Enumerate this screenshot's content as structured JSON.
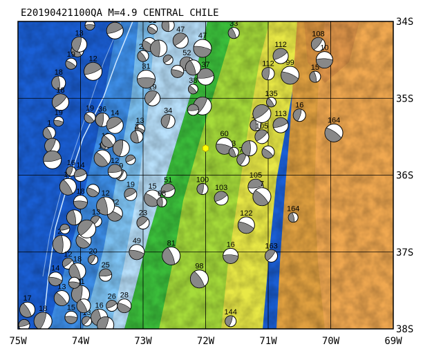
{
  "header": {
    "title": "E20190421100QA M=4.9 CENTRAL CHILE"
  },
  "map": {
    "lon_range": [
      -75,
      -69
    ],
    "lat_range": [
      -38,
      -34
    ],
    "x_ticks": [
      {
        "lon": -75,
        "label": "75W"
      },
      {
        "lon": -74,
        "label": "74W"
      },
      {
        "lon": -73,
        "label": "73W"
      },
      {
        "lon": -72,
        "label": "72W"
      },
      {
        "lon": -71,
        "label": "71W"
      },
      {
        "lon": -70,
        "label": "70W"
      },
      {
        "lon": -69,
        "label": "69W"
      }
    ],
    "y_ticks": [
      {
        "lat": -34,
        "label": "34S"
      },
      {
        "lat": -35,
        "label": "35S"
      },
      {
        "lat": -36,
        "label": "36S"
      },
      {
        "lat": -37,
        "label": "37S"
      },
      {
        "lat": -38,
        "label": "38S"
      }
    ],
    "epicenter": {
      "lon": -72.0,
      "lat": -35.65
    },
    "colors": {
      "deep_ocean": "#1a5fd6",
      "mid_ocean": "#3d8ee8",
      "shelf": "#7ec4f5",
      "shelf_light": "#b8e0fb",
      "lowland": "#3bbf3b",
      "hill": "#a6dc3a",
      "plateau": "#e8e846",
      "highland": "#e0a040",
      "mountain": "#f0a850",
      "peak": "#c87840",
      "epicenter": "#ffff00",
      "beach_fill": "#888888"
    }
  },
  "events": [
    {
      "lon": -73.85,
      "lat": -34.05,
      "depth": "21"
    },
    {
      "lon": -74.05,
      "lat": -34.38,
      "depth": "12"
    },
    {
      "lon": -74.02,
      "lat": -34.3,
      "depth": "13"
    },
    {
      "lon": -73.8,
      "lat": -34.65,
      "depth": "12"
    },
    {
      "lon": -74.15,
      "lat": -34.55,
      "depth": "19"
    },
    {
      "lon": -74.35,
      "lat": -34.8,
      "depth": "18"
    },
    {
      "lon": -74.32,
      "lat": -35.05,
      "depth": "18"
    },
    {
      "lon": -74.35,
      "lat": -35.3,
      "depth": "19"
    },
    {
      "lon": -74.5,
      "lat": -35.45,
      "depth": "1"
    },
    {
      "lon": -74.45,
      "lat": -35.62,
      "depth": ""
    },
    {
      "lon": -74.45,
      "lat": -35.8,
      "depth": ""
    },
    {
      "lon": -73.85,
      "lat": -35.25,
      "depth": "19"
    },
    {
      "lon": -73.65,
      "lat": -35.28,
      "depth": "36"
    },
    {
      "lon": -73.45,
      "lat": -35.35,
      "depth": "14"
    },
    {
      "lon": -73.05,
      "lat": -35.4,
      "depth": "13"
    },
    {
      "lon": -73.1,
      "lat": -35.5,
      "depth": "3"
    },
    {
      "lon": -72.85,
      "lat": -35.0,
      "depth": "19"
    },
    {
      "lon": -72.95,
      "lat": -34.75,
      "depth": "31"
    },
    {
      "lon": -73.0,
      "lat": -34.45,
      "depth": "21"
    },
    {
      "lon": -72.6,
      "lat": -35.3,
      "depth": "34"
    },
    {
      "lon": -73.45,
      "lat": -34.12,
      "depth": "32"
    },
    {
      "lon": -72.85,
      "lat": -34.1,
      "depth": "31"
    },
    {
      "lon": -72.6,
      "lat": -34.05,
      "depth": "38"
    },
    {
      "lon": -72.4,
      "lat": -34.25,
      "depth": "47"
    },
    {
      "lon": -72.05,
      "lat": -34.35,
      "depth": "47"
    },
    {
      "lon": -71.55,
      "lat": -34.15,
      "depth": "33"
    },
    {
      "lon": -72.3,
      "lat": -34.55,
      "depth": "52"
    },
    {
      "lon": -72.0,
      "lat": -34.72,
      "depth": "37"
    },
    {
      "lon": -72.2,
      "lat": -34.88,
      "depth": "38"
    },
    {
      "lon": -71.0,
      "lat": -34.68,
      "depth": "112"
    },
    {
      "lon": -70.8,
      "lat": -34.45,
      "depth": "112"
    },
    {
      "lon": -70.65,
      "lat": -34.7,
      "depth": "99"
    },
    {
      "lon": -70.25,
      "lat": -34.72,
      "depth": "15"
    },
    {
      "lon": -70.2,
      "lat": -34.3,
      "depth": "108"
    },
    {
      "lon": -70.1,
      "lat": -34.5,
      "depth": "10"
    },
    {
      "lon": -70.95,
      "lat": -35.05,
      "depth": "135"
    },
    {
      "lon": -70.5,
      "lat": -35.22,
      "depth": "16"
    },
    {
      "lon": -70.8,
      "lat": -35.35,
      "depth": "113"
    },
    {
      "lon": -69.95,
      "lat": -35.45,
      "depth": "164"
    },
    {
      "lon": -71.2,
      "lat": -35.35,
      "depth": "10"
    },
    {
      "lon": -71.1,
      "lat": -35.5,
      "depth": "105"
    },
    {
      "lon": -71.7,
      "lat": -35.62,
      "depth": "60"
    },
    {
      "lon": -71.55,
      "lat": -35.7,
      "depth": "3"
    },
    {
      "lon": -71.4,
      "lat": -35.8,
      "depth": "77"
    },
    {
      "lon": -71.2,
      "lat": -36.15,
      "depth": "105"
    },
    {
      "lon": -71.1,
      "lat": -36.28,
      "depth": "7"
    },
    {
      "lon": -72.05,
      "lat": -36.18,
      "depth": "100"
    },
    {
      "lon": -71.75,
      "lat": -36.3,
      "depth": "103"
    },
    {
      "lon": -71.35,
      "lat": -36.65,
      "depth": "122"
    },
    {
      "lon": -70.6,
      "lat": -36.55,
      "depth": "164"
    },
    {
      "lon": -70.95,
      "lat": -37.05,
      "depth": "163"
    },
    {
      "lon": -71.6,
      "lat": -37.05,
      "depth": "16"
    },
    {
      "lon": -72.1,
      "lat": -37.35,
      "depth": "98"
    },
    {
      "lon": -71.6,
      "lat": -37.9,
      "depth": "144"
    },
    {
      "lon": -72.6,
      "lat": -36.2,
      "depth": "51"
    },
    {
      "lon": -72.85,
      "lat": -36.3,
      "depth": "15"
    },
    {
      "lon": -72.7,
      "lat": -36.35,
      "depth": "68"
    },
    {
      "lon": -73.0,
      "lat": -36.62,
      "depth": "23"
    },
    {
      "lon": -73.1,
      "lat": -37.0,
      "depth": "49"
    },
    {
      "lon": -72.55,
      "lat": -37.05,
      "depth": "81"
    },
    {
      "lon": -73.35,
      "lat": -36.0,
      "depth": "9"
    },
    {
      "lon": -73.45,
      "lat": -35.95,
      "depth": "12"
    },
    {
      "lon": -73.65,
      "lat": -35.78,
      "depth": "16"
    },
    {
      "lon": -73.6,
      "lat": -35.6,
      "depth": "18"
    },
    {
      "lon": -73.2,
      "lat": -36.25,
      "depth": "19"
    },
    {
      "lon": -73.45,
      "lat": -36.5,
      "depth": "22"
    },
    {
      "lon": -73.6,
      "lat": -36.4,
      "depth": "12"
    },
    {
      "lon": -73.75,
      "lat": -36.6,
      "depth": "13"
    },
    {
      "lon": -74.0,
      "lat": -36.35,
      "depth": "18"
    },
    {
      "lon": -74.2,
      "lat": -36.15,
      "depth": "15"
    },
    {
      "lon": -74.15,
      "lat": -35.95,
      "depth": "16"
    },
    {
      "lon": -74.0,
      "lat": -36.0,
      "depth": "14"
    },
    {
      "lon": -73.95,
      "lat": -36.85,
      "depth": "15"
    },
    {
      "lon": -74.3,
      "lat": -36.9,
      "depth": "20"
    },
    {
      "lon": -74.2,
      "lat": -37.15,
      "depth": "12"
    },
    {
      "lon": -74.4,
      "lat": -37.35,
      "depth": "14"
    },
    {
      "lon": -74.05,
      "lat": -37.25,
      "depth": "18"
    },
    {
      "lon": -73.8,
      "lat": -37.1,
      "depth": "20"
    },
    {
      "lon": -73.6,
      "lat": -37.3,
      "depth": "25"
    },
    {
      "lon": -74.3,
      "lat": -37.6,
      "depth": "13"
    },
    {
      "lon": -74.0,
      "lat": -37.55,
      "depth": "21"
    },
    {
      "lon": -73.5,
      "lat": -37.7,
      "depth": "26"
    },
    {
      "lon": -73.3,
      "lat": -37.7,
      "depth": "28"
    },
    {
      "lon": -73.7,
      "lat": -37.85,
      "depth": "16"
    },
    {
      "lon": -73.9,
      "lat": -37.9,
      "depth": "13"
    },
    {
      "lon": -74.15,
      "lat": -37.85,
      "depth": "15"
    },
    {
      "lon": -74.85,
      "lat": -37.75,
      "depth": "17"
    },
    {
      "lon": -74.6,
      "lat": -37.9,
      "depth": "18"
    },
    {
      "lon": -74.9,
      "lat": -37.95,
      "depth": ""
    },
    {
      "lon": -72.9,
      "lat": -34.3,
      "depth": ""
    },
    {
      "lon": -72.75,
      "lat": -34.35,
      "depth": ""
    },
    {
      "lon": -72.6,
      "lat": -34.5,
      "depth": ""
    },
    {
      "lon": -72.45,
      "lat": -34.65,
      "depth": ""
    },
    {
      "lon": -72.2,
      "lat": -34.6,
      "depth": ""
    },
    {
      "lon": -72.05,
      "lat": -35.1,
      "depth": ""
    },
    {
      "lon": -72.2,
      "lat": -35.15,
      "depth": ""
    },
    {
      "lon": -73.55,
      "lat": -35.55,
      "depth": ""
    },
    {
      "lon": -73.35,
      "lat": -35.65,
      "depth": ""
    },
    {
      "lon": -73.2,
      "lat": -35.8,
      "depth": ""
    },
    {
      "lon": -73.8,
      "lat": -36.2,
      "depth": ""
    },
    {
      "lon": -74.1,
      "lat": -36.55,
      "depth": ""
    },
    {
      "lon": -73.9,
      "lat": -36.7,
      "depth": ""
    },
    {
      "lon": -74.1,
      "lat": -37.4,
      "depth": ""
    },
    {
      "lon": -73.95,
      "lat": -37.7,
      "depth": ""
    },
    {
      "lon": -73.6,
      "lat": -37.95,
      "depth": ""
    },
    {
      "lon": -74.25,
      "lat": -36.7,
      "depth": ""
    },
    {
      "lon": -71.0,
      "lat": -35.7,
      "depth": ""
    },
    {
      "lon": -71.3,
      "lat": -35.65,
      "depth": ""
    },
    {
      "lon": -71.1,
      "lat": -35.2,
      "depth": ""
    }
  ]
}
